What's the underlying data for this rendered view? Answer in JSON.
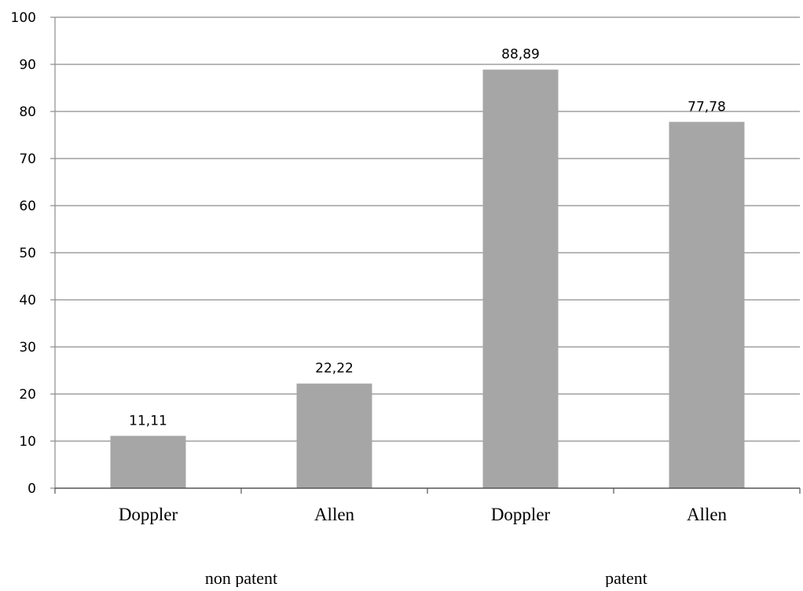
{
  "chart_data": {
    "type": "bar",
    "title": "",
    "xlabel": "",
    "ylabel": "",
    "ylim": [
      0,
      100
    ],
    "yticks": [
      0,
      10,
      20,
      30,
      40,
      50,
      60,
      70,
      80,
      90,
      100
    ],
    "grid": true,
    "legend": "none",
    "bar_color": "#a6a6a6",
    "grid_color": "#8c8c8c",
    "categories": [
      "Doppler",
      "Allen",
      "Doppler",
      "Allen"
    ],
    "groups": [
      {
        "label": "non patent",
        "categories": [
          "Doppler",
          "Allen"
        ]
      },
      {
        "label": "patent",
        "categories": [
          "Doppler",
          "Allen"
        ]
      }
    ],
    "values": [
      11.11,
      22.22,
      88.89,
      77.78
    ],
    "data_labels": [
      "11,11",
      "22,22",
      "88,89",
      "77,78"
    ]
  }
}
